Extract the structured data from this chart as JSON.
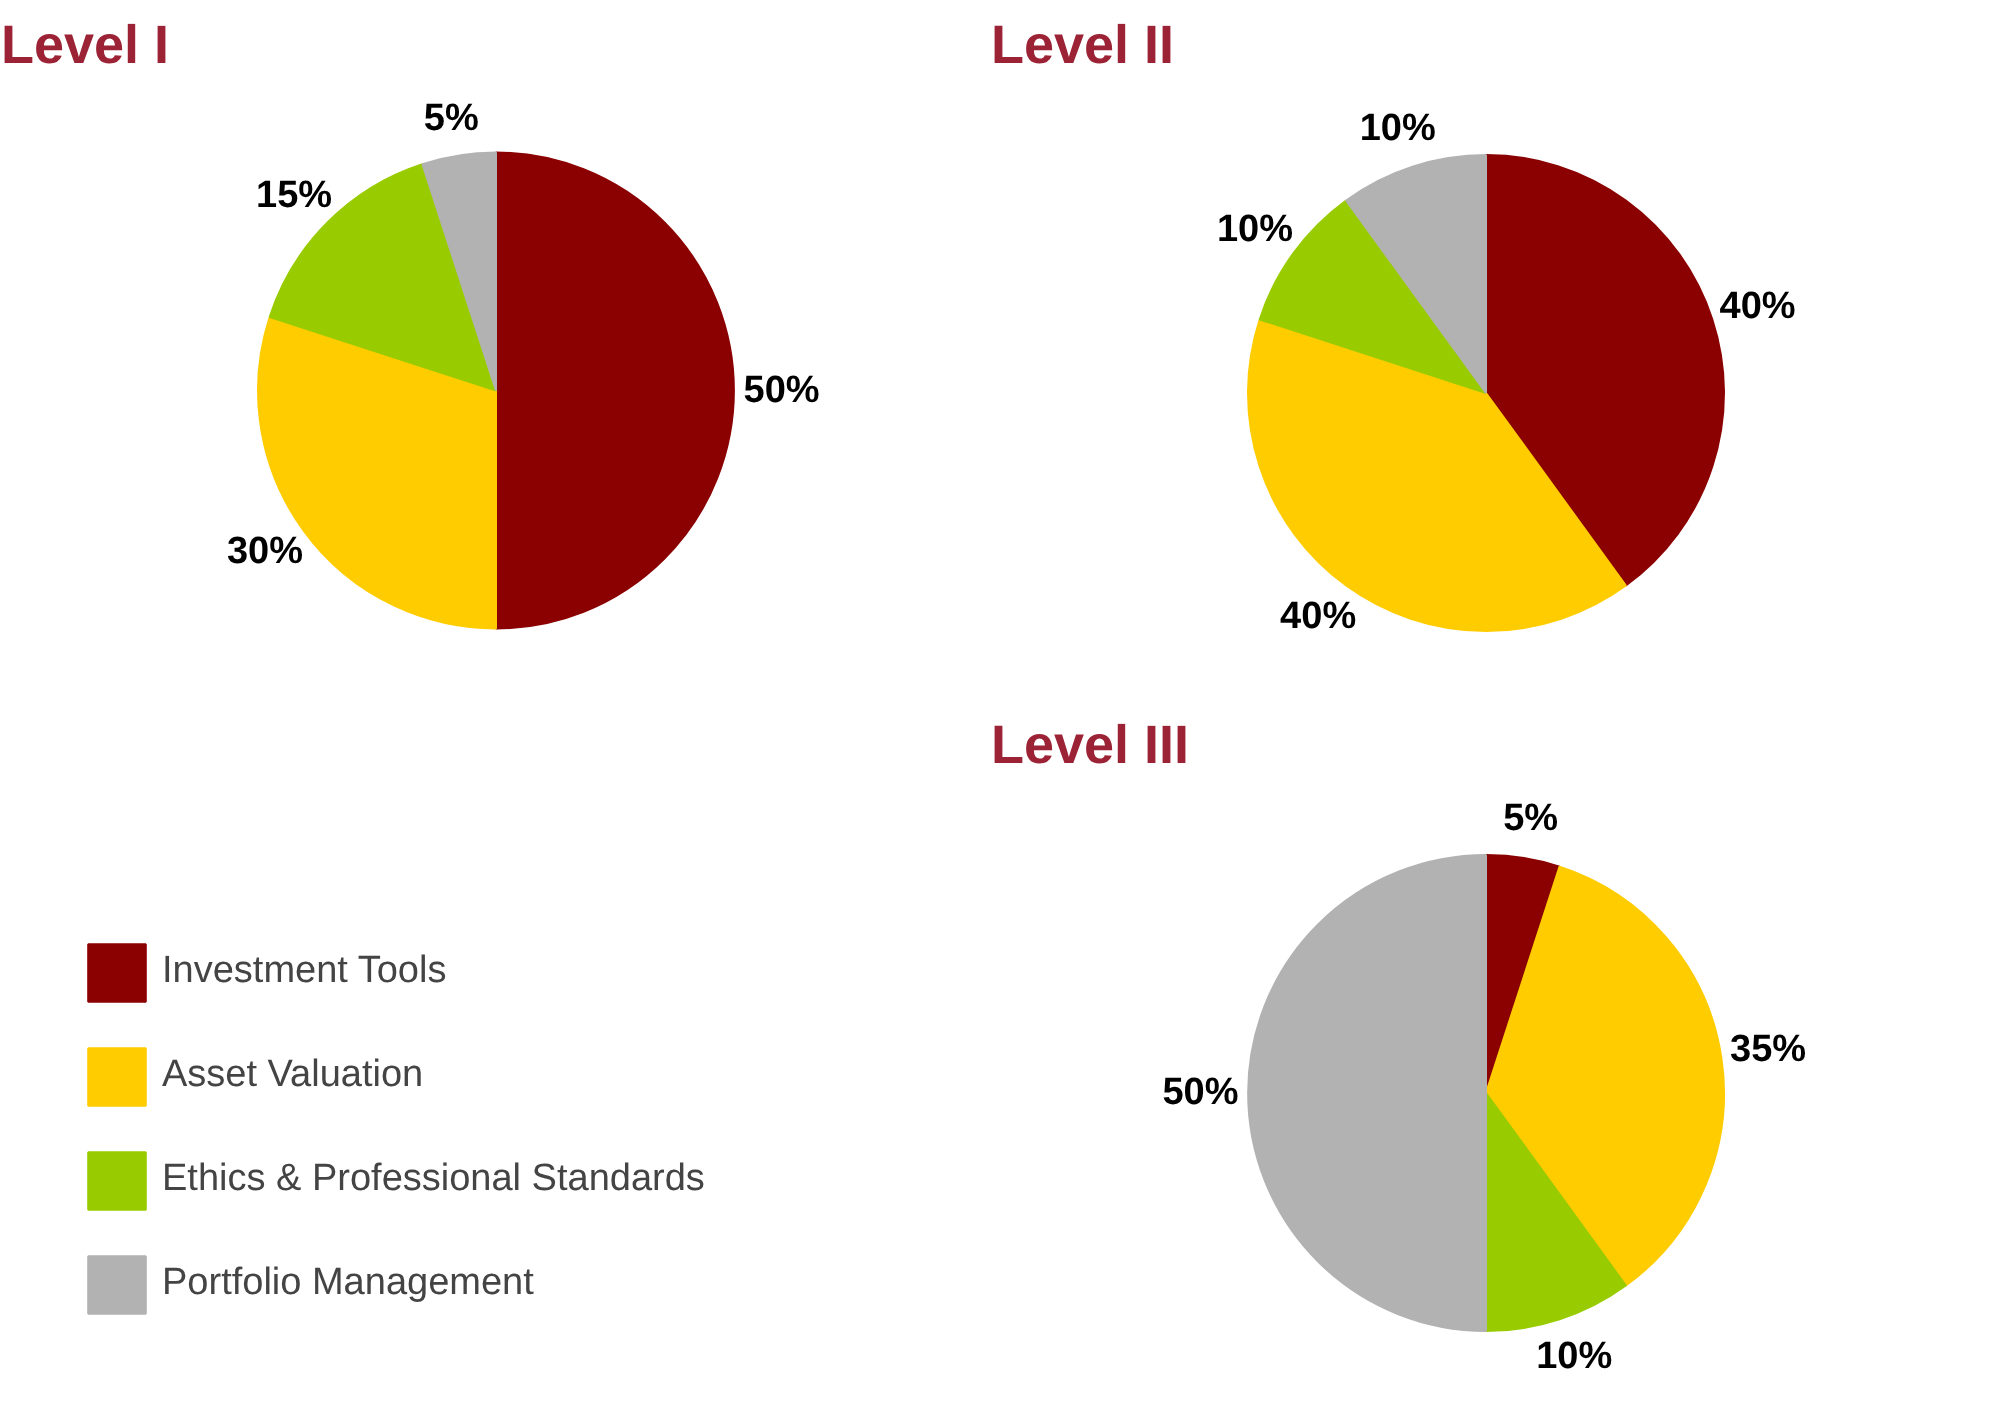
{
  "chart_data": [
    {
      "type": "pie",
      "title": "Level I",
      "categories": [
        "Investment Tools",
        "Asset Valuation",
        "Ethics & Professional Standards",
        "Portfolio Management"
      ],
      "values": [
        50,
        30,
        15,
        5
      ],
      "value_labels": [
        "50%",
        "30%",
        "15%",
        "5%"
      ],
      "colors": [
        "#8b0000",
        "#ffcc00",
        "#99cc00",
        "#b2b2b2"
      ],
      "legend": "bottom"
    },
    {
      "type": "pie",
      "title": "Level II",
      "values": [
        40,
        40,
        10,
        10
      ],
      "value_labels": [
        "40%",
        "40%",
        "10%",
        "10%"
      ],
      "colors": [
        "#8b0000",
        "#ffcc00",
        "#99cc00",
        "#b2b2b2"
      ]
    },
    {
      "type": "pie",
      "title": "Level III",
      "values": [
        5,
        35,
        10,
        50
      ],
      "value_labels": [
        "5%",
        "35%",
        "10%",
        "50%"
      ],
      "colors": [
        "#8b0000",
        "#ffcc00",
        "#99cc00",
        "#b2b2b2"
      ]
    }
  ]
}
